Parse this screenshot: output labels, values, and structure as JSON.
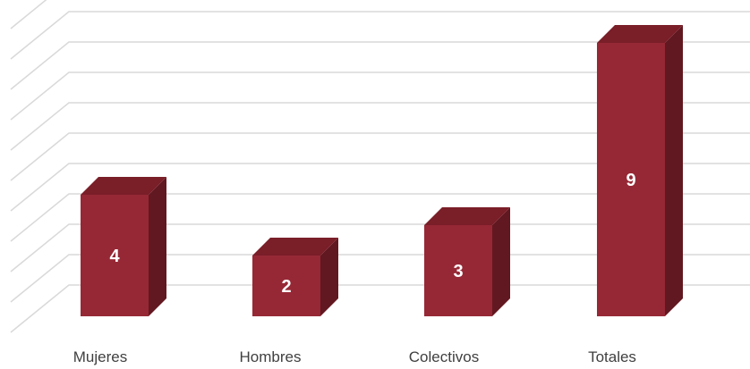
{
  "chart_data": {
    "type": "bar",
    "style": "3d-column",
    "categories": [
      "Mujeres",
      "Hombres",
      "Colectivos",
      "Totales"
    ],
    "values": [
      4,
      2,
      3,
      9
    ],
    "data_labels": [
      "4",
      "2",
      "3",
      "9"
    ],
    "title": "",
    "xlabel": "",
    "ylabel": "",
    "ylim": [
      0,
      10
    ],
    "grid": true,
    "legend": "none",
    "colors": {
      "bar_front": "#962835",
      "bar_top": "#7a1e28",
      "bar_side": "#621820",
      "grid": "#d9d9d9",
      "category_text": "#404040",
      "value_text": "#ffffff"
    }
  }
}
